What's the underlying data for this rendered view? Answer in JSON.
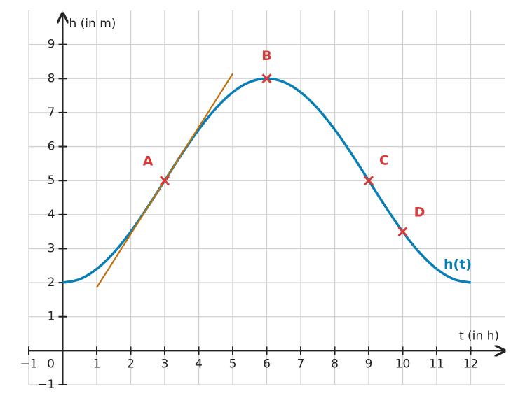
{
  "chart_data": {
    "type": "line",
    "xlabel": "t (in h)",
    "ylabel": "h (in m)",
    "xlim": [
      -1,
      13
    ],
    "ylim": [
      -1,
      10
    ],
    "xticks": [
      {
        "value": -1,
        "label": "−1"
      },
      0,
      1,
      2,
      3,
      4,
      5,
      6,
      7,
      8,
      9,
      10,
      11,
      12
    ],
    "yticks": [
      {
        "value": -1,
        "label": "−1"
      },
      1,
      2,
      3,
      4,
      5,
      6,
      7,
      8,
      9
    ],
    "grid": true,
    "series": [
      {
        "name": "h(t)",
        "color": "#0a7fb5",
        "x": [
          0,
          0.5,
          1,
          1.5,
          2,
          2.5,
          3,
          3.5,
          4,
          4.5,
          5,
          5.5,
          6,
          6.5,
          7,
          7.5,
          8,
          8.5,
          9,
          9.5,
          10,
          10.5,
          11,
          11.5,
          12
        ],
        "values": [
          2,
          2.102,
          2.402,
          2.879,
          3.5,
          4.224,
          5,
          5.776,
          6.5,
          7.121,
          7.598,
          7.898,
          8,
          7.898,
          7.598,
          7.121,
          6.5,
          5.776,
          5,
          4.224,
          3.5,
          2.879,
          2.402,
          2.102,
          2
        ]
      },
      {
        "color": "#c0700a",
        "x": [
          1,
          5
        ],
        "values": [
          1.858,
          8.142
        ]
      }
    ],
    "points": {
      "color": "#d63a3a",
      "labels": [
        "A",
        "B",
        "C",
        "D"
      ],
      "x": [
        3,
        6,
        9,
        10
      ],
      "values": [
        5,
        8,
        5,
        3.5
      ]
    }
  }
}
